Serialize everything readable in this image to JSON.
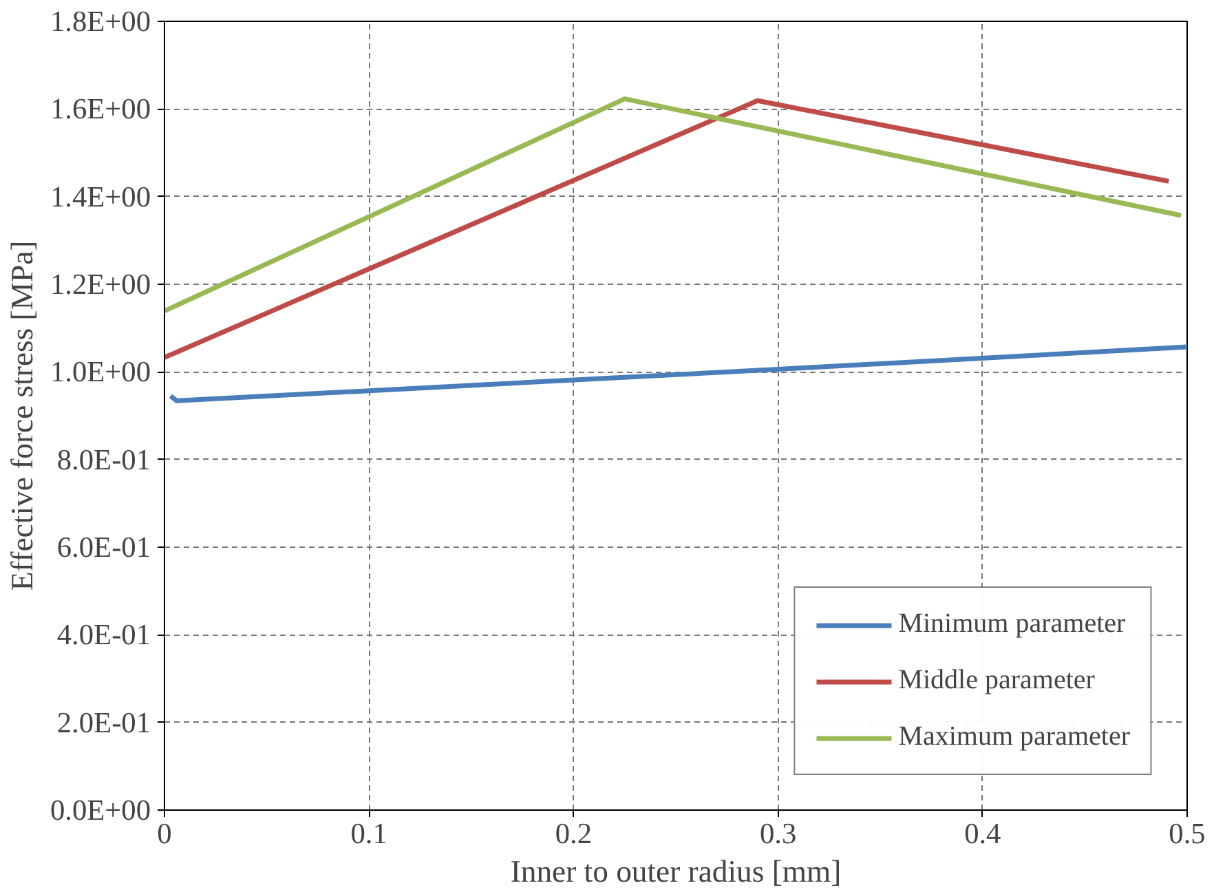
{
  "chart_data": {
    "type": "line",
    "xlabel": "Inner to outer radius [mm]",
    "ylabel": "Effective force stress [MPa]",
    "xlim": [
      0,
      0.5
    ],
    "xticks": [
      0,
      0.1,
      0.2,
      0.3,
      0.4,
      0.5
    ],
    "ylim": [
      0,
      1.8
    ],
    "yticks": [
      {
        "value": 0,
        "label": "0.0E+00"
      },
      {
        "value": 0.2,
        "label": "2.0E-01"
      },
      {
        "value": 0.4,
        "label": "4.0E-01"
      },
      {
        "value": 0.6,
        "label": "6.0E-01"
      },
      {
        "value": 0.8,
        "label": "8.0E-01"
      },
      {
        "value": 1.0,
        "label": "1.0E+00"
      },
      {
        "value": 1.2,
        "label": "1.2E+00"
      },
      {
        "value": 1.4,
        "label": "1.4E+00"
      },
      {
        "value": 1.6,
        "label": "1.6E+00"
      },
      {
        "value": 1.8,
        "label": "1.8E+00"
      }
    ],
    "grid": true,
    "legend": "bottom right",
    "marker": "none",
    "line_style": "solid",
    "series": [
      {
        "name": "Minimum parameter",
        "color": "#4a7ebb",
        "x": [
          0.003,
          0.006,
          0.3,
          0.5
        ],
        "values": [
          0.945,
          0.934,
          1.006,
          1.057
        ]
      },
      {
        "name": "Middle parameter",
        "color": "#be4b48",
        "x": [
          0,
          0.29,
          0.491
        ],
        "values": [
          1.033,
          1.619,
          1.435
        ]
      },
      {
        "name": "Maximum parameter",
        "color": "#98b954",
        "x": [
          0,
          0.225,
          0.497
        ],
        "values": [
          1.139,
          1.623,
          1.357
        ]
      }
    ]
  }
}
